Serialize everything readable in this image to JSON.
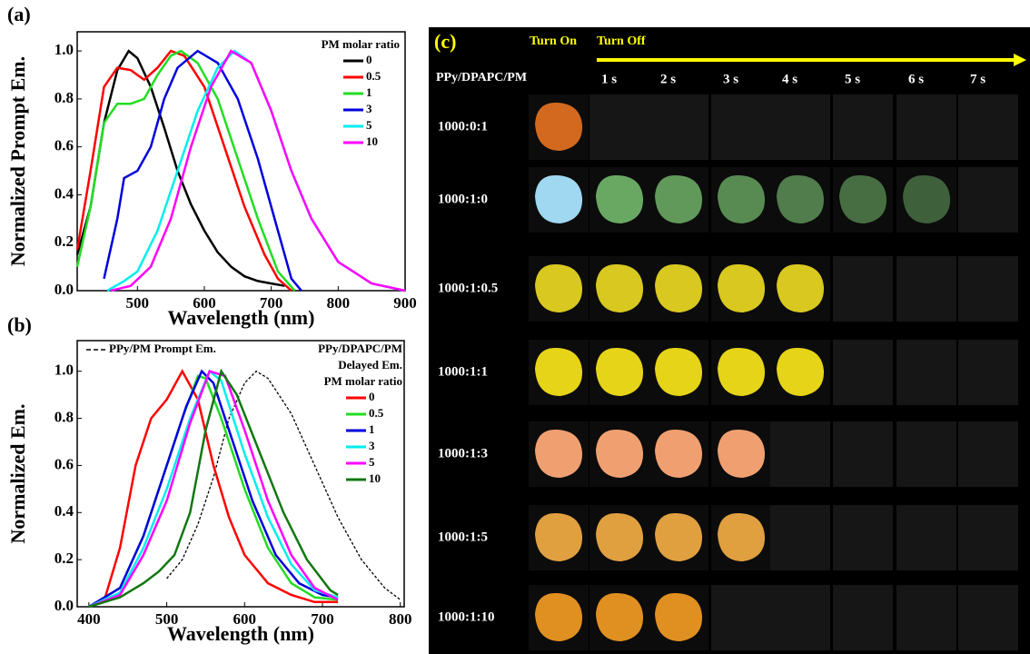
{
  "chart_data": [
    {
      "type": "line",
      "panel_label": "(a)",
      "y_label": "Normalized Prompt Em.",
      "x_label": "Wavelength (nm)",
      "legend_title": [
        "PM molar ratio"
      ],
      "xlim": [
        410,
        900
      ],
      "ylim": [
        0,
        1.08
      ],
      "xticks": [
        500,
        600,
        700,
        800,
        900
      ],
      "yticks": [
        {
          "value": 0,
          "label": "0.0"
        },
        0.2,
        0.4,
        0.6,
        0.8,
        {
          "value": 1,
          "label": "1.0"
        }
      ],
      "series": [
        {
          "name": "0",
          "color": "#000000",
          "x": [
            410,
            430,
            450,
            470,
            487,
            500,
            520,
            540,
            560,
            580,
            600,
            620,
            640,
            660,
            680,
            700,
            720
          ],
          "values": [
            0.15,
            0.35,
            0.7,
            0.92,
            1.0,
            0.97,
            0.85,
            0.68,
            0.5,
            0.36,
            0.25,
            0.16,
            0.1,
            0.06,
            0.04,
            0.03,
            0.02
          ]
        },
        {
          "name": "0.5",
          "color": "#ff0000",
          "x": [
            410,
            430,
            450,
            470,
            490,
            510,
            530,
            550,
            570,
            600,
            630,
            660,
            690,
            710,
            730
          ],
          "values": [
            0.17,
            0.5,
            0.85,
            0.93,
            0.92,
            0.88,
            0.93,
            1.0,
            0.98,
            0.85,
            0.6,
            0.35,
            0.15,
            0.05,
            0.0
          ]
        },
        {
          "name": "1",
          "color": "#22dd22",
          "x": [
            410,
            430,
            450,
            470,
            490,
            510,
            530,
            550,
            565,
            590,
            620,
            650,
            680,
            710,
            735
          ],
          "values": [
            0.1,
            0.35,
            0.7,
            0.78,
            0.78,
            0.8,
            0.9,
            0.98,
            1.0,
            0.95,
            0.8,
            0.55,
            0.3,
            0.08,
            0.0
          ]
        },
        {
          "name": "3",
          "color": "#0000dd",
          "x": [
            450,
            470,
            480,
            500,
            520,
            540,
            560,
            590,
            620,
            650,
            680,
            710,
            730,
            745
          ],
          "values": [
            0.05,
            0.3,
            0.47,
            0.5,
            0.6,
            0.8,
            0.93,
            1.0,
            0.95,
            0.8,
            0.55,
            0.25,
            0.05,
            0.0
          ]
        },
        {
          "name": "5",
          "color": "#00eeee",
          "x": [
            455,
            480,
            500,
            530,
            560,
            590,
            620,
            645,
            670,
            700,
            730,
            760,
            800,
            850,
            900
          ],
          "values": [
            0.0,
            0.04,
            0.08,
            0.25,
            0.5,
            0.75,
            0.93,
            1.0,
            0.95,
            0.75,
            0.5,
            0.3,
            0.12,
            0.03,
            0.0
          ]
        },
        {
          "name": "10",
          "color": "#ff00ff",
          "x": [
            460,
            490,
            520,
            550,
            580,
            610,
            640,
            670,
            700,
            730,
            760,
            800,
            850,
            900
          ],
          "values": [
            0.0,
            0.02,
            0.1,
            0.3,
            0.6,
            0.85,
            1.0,
            0.95,
            0.75,
            0.5,
            0.3,
            0.12,
            0.03,
            0.0
          ]
        }
      ]
    },
    {
      "type": "line",
      "panel_label": "(b)",
      "y_label": "Normalized Em.",
      "x_label": "Wavelength (nm)",
      "legend_title": [
        "PPy/DPAPC/PM",
        "Delayed Em.",
        "PM molar ratio"
      ],
      "xlim": [
        385,
        805
      ],
      "ylim": [
        0,
        1.13
      ],
      "xticks": [
        400,
        500,
        600,
        700,
        800
      ],
      "yticks": [
        {
          "value": 0,
          "label": "0.0"
        },
        0.2,
        0.4,
        0.6,
        0.8,
        {
          "value": 1,
          "label": "1.0"
        }
      ],
      "series": [
        {
          "name": "PPy/PM Prompt Em.",
          "color": "#000000",
          "line_style": "dashed",
          "x": [
            500,
            520,
            540,
            560,
            580,
            600,
            615,
            630,
            660,
            690,
            720,
            750,
            780,
            800
          ],
          "values": [
            0.12,
            0.2,
            0.35,
            0.55,
            0.8,
            0.95,
            1.0,
            0.97,
            0.82,
            0.6,
            0.38,
            0.2,
            0.08,
            0.03
          ]
        },
        {
          "name": "0",
          "color": "#ff0000",
          "x": [
            400,
            420,
            440,
            460,
            480,
            500,
            520,
            540,
            560,
            580,
            600,
            630,
            660,
            690,
            720
          ],
          "values": [
            0.0,
            0.03,
            0.25,
            0.6,
            0.8,
            0.88,
            1.0,
            0.88,
            0.6,
            0.38,
            0.22,
            0.1,
            0.05,
            0.02,
            0.02
          ]
        },
        {
          "name": "0.5",
          "color": "#22dd22",
          "x": [
            400,
            440,
            470,
            500,
            520,
            540,
            550,
            570,
            600,
            630,
            660,
            690,
            720
          ],
          "values": [
            0.0,
            0.08,
            0.3,
            0.6,
            0.8,
            0.98,
            0.97,
            0.8,
            0.5,
            0.25,
            0.1,
            0.04,
            0.03
          ]
        },
        {
          "name": "1",
          "color": "#0000dd",
          "x": [
            400,
            440,
            470,
            500,
            525,
            545,
            560,
            580,
            610,
            640,
            670,
            700,
            720
          ],
          "values": [
            0.0,
            0.08,
            0.3,
            0.6,
            0.85,
            1.0,
            0.95,
            0.75,
            0.45,
            0.22,
            0.1,
            0.05,
            0.04
          ]
        },
        {
          "name": "3",
          "color": "#00eeee",
          "x": [
            400,
            440,
            470,
            500,
            530,
            555,
            570,
            600,
            630,
            660,
            690,
            720
          ],
          "values": [
            0.0,
            0.06,
            0.25,
            0.5,
            0.8,
            1.0,
            0.96,
            0.65,
            0.38,
            0.18,
            0.07,
            0.04
          ]
        },
        {
          "name": "5",
          "color": "#ff00ff",
          "x": [
            400,
            440,
            470,
            500,
            530,
            555,
            575,
            600,
            630,
            660,
            690,
            720
          ],
          "values": [
            0.0,
            0.05,
            0.22,
            0.45,
            0.78,
            1.0,
            0.98,
            0.75,
            0.45,
            0.22,
            0.08,
            0.03
          ]
        },
        {
          "name": "10",
          "color": "#117711",
          "x": [
            400,
            440,
            470,
            490,
            510,
            530,
            550,
            570,
            590,
            620,
            650,
            680,
            710,
            720
          ],
          "values": [
            0.0,
            0.04,
            0.1,
            0.15,
            0.22,
            0.4,
            0.75,
            1.0,
            0.9,
            0.65,
            0.4,
            0.2,
            0.07,
            0.05
          ]
        }
      ]
    }
  ],
  "photo_panel": {
    "panel_label": "(c)",
    "turn_on": "Turn On",
    "turn_off": "Turn Off",
    "row_header": "PPy/DPAPC/PM",
    "times": [
      "1 s",
      "2 s",
      "3 s",
      "4 s",
      "5 s",
      "6 s",
      "7 s"
    ],
    "rows": [
      "1000:0:1",
      "1000:1:0",
      "1000:1:0.5",
      "1000:1:1",
      "1000:1:3",
      "1000:1:5",
      "1000:1:10"
    ]
  }
}
